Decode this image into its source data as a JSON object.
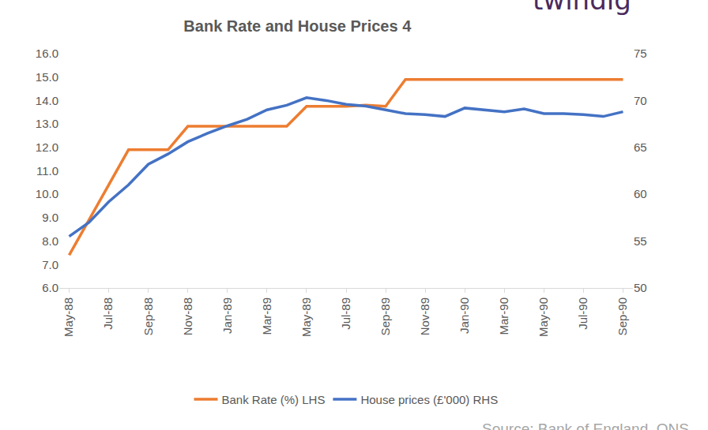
{
  "chart_data": {
    "type": "line",
    "title": "Bank Rate and House Prices 4",
    "categories": [
      "May-88",
      null,
      "Jul-88",
      null,
      "Sep-88",
      null,
      "Nov-88",
      null,
      "Jan-89",
      null,
      "Mar-89",
      null,
      "May-89",
      null,
      "Jul-89",
      null,
      "Sep-89",
      null,
      "Nov-89",
      null,
      "Jan-90",
      null,
      "Mar-90",
      null,
      "May-90",
      null,
      "Jul-90",
      null,
      "Sep-90"
    ],
    "series": [
      {
        "name": "Bank Rate (%) LHS",
        "color": "#ED7D31",
        "axis": "y",
        "values": [
          7.4,
          8.9,
          10.4,
          11.9,
          11.9,
          11.9,
          12.9,
          12.9,
          12.9,
          12.9,
          12.9,
          12.9,
          13.75,
          13.75,
          13.75,
          13.8,
          13.75,
          14.9,
          14.9,
          14.9,
          14.9,
          14.9,
          14.9,
          14.9,
          14.9,
          14.9,
          14.9,
          14.9,
          14.9
        ]
      },
      {
        "name": "House prices (£'000) RHS",
        "color": "#4472C4",
        "axis": "y2",
        "values": [
          55.5,
          57.0,
          59.2,
          61.0,
          63.2,
          64.3,
          65.6,
          66.5,
          67.3,
          68.0,
          69.0,
          69.5,
          70.3,
          70.0,
          69.6,
          69.4,
          69.0,
          68.6,
          68.5,
          68.3,
          69.2,
          69.0,
          68.8,
          69.1,
          68.6,
          68.6,
          68.5,
          68.3,
          68.8
        ]
      }
    ],
    "ylim": [
      6,
      16
    ],
    "yticks": [
      {
        "value": 6,
        "label": "6.0"
      },
      {
        "value": 7,
        "label": "7.0"
      },
      {
        "value": 8,
        "label": "8.0"
      },
      {
        "value": 9,
        "label": "9.0"
      },
      {
        "value": 10,
        "label": "10.0"
      },
      {
        "value": 11,
        "label": "11.0"
      },
      {
        "value": 12,
        "label": "12.0"
      },
      {
        "value": 13,
        "label": "13.0"
      },
      {
        "value": 14,
        "label": "14.0"
      },
      {
        "value": 15,
        "label": "15.0"
      },
      {
        "value": 16,
        "label": "16.0"
      }
    ],
    "y2lim": [
      50,
      75
    ],
    "y2ticks": [
      50,
      55,
      60,
      65,
      70,
      75
    ],
    "grid": false,
    "legend": "bottom",
    "annotations": [
      {
        "text": "twindig"
      },
      {
        "text": "Source: Bank of England, ONS"
      }
    ]
  }
}
